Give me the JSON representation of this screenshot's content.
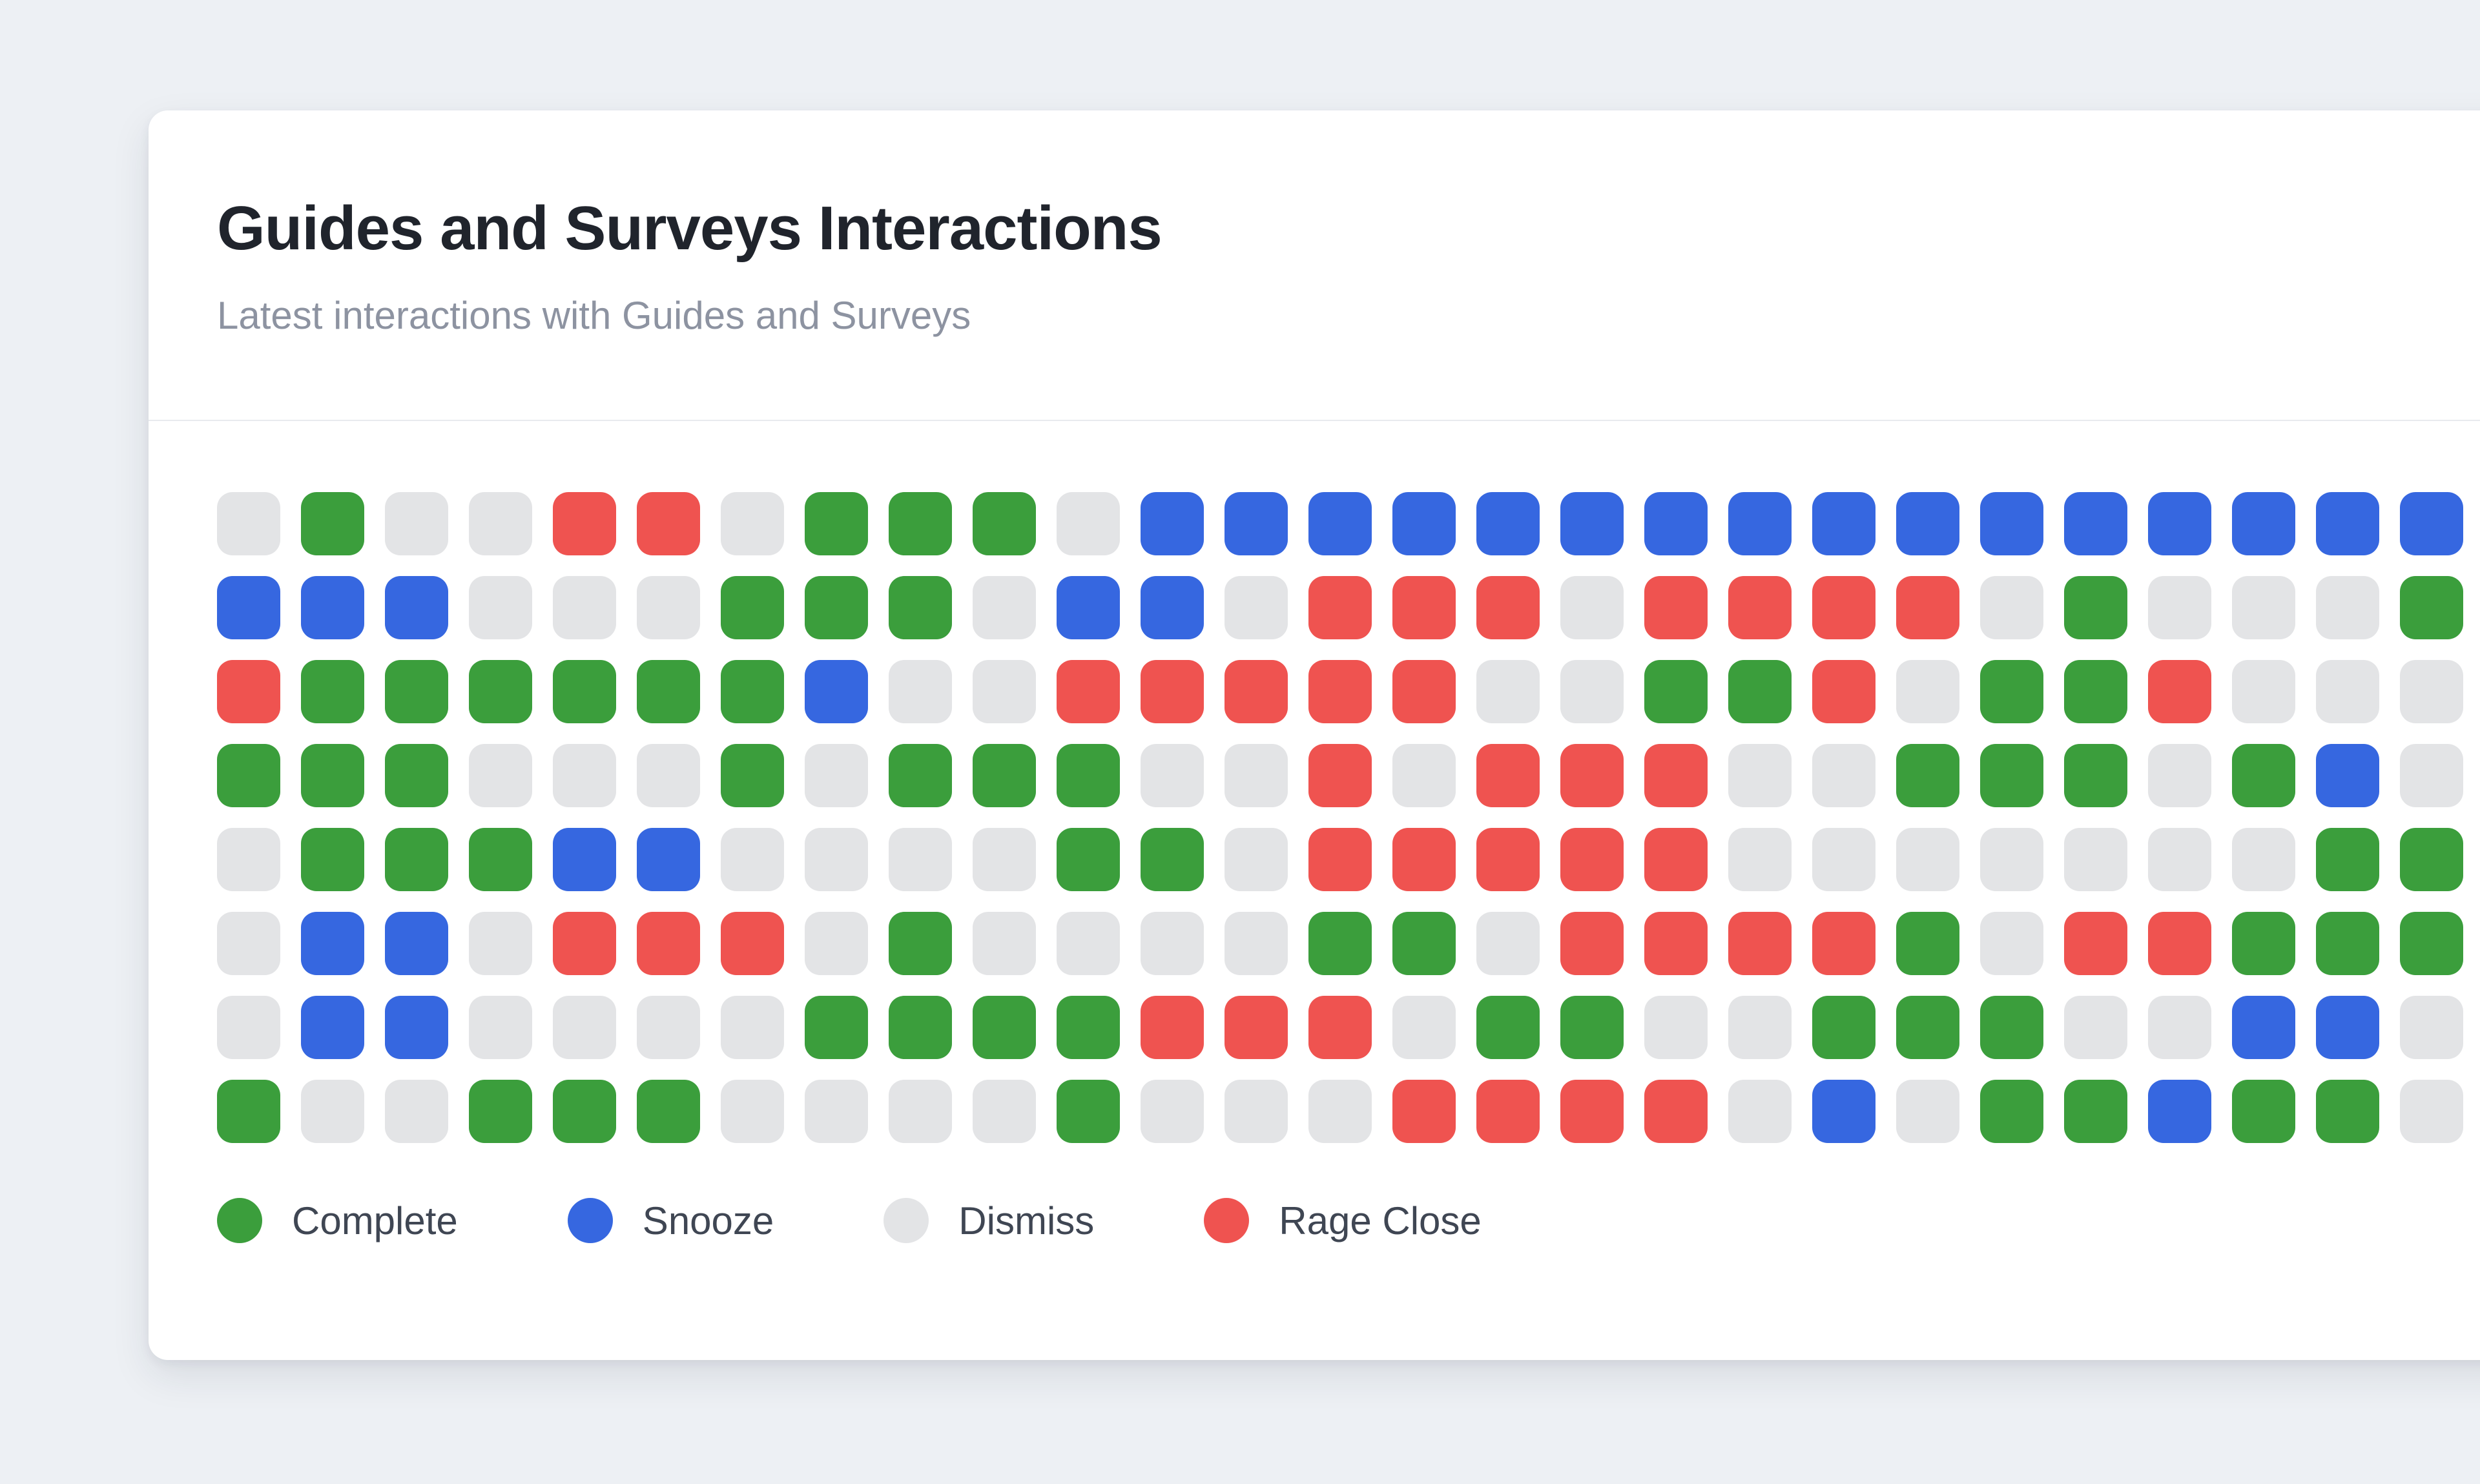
{
  "card": {
    "title": "Guides and Surveys Interactions",
    "subtitle": "Latest interactions with Guides and Surveys"
  },
  "legend": {
    "items": [
      {
        "id": "complete",
        "label": "Complete",
        "color": "#3b9e3c"
      },
      {
        "id": "snooze",
        "label": "Snooze",
        "color": "#3667e0"
      },
      {
        "id": "dismiss",
        "label": "Dismiss",
        "color": "#e3e4e6"
      },
      {
        "id": "rage_close",
        "label": "Rage Close",
        "color": "#ef5350"
      }
    ]
  },
  "chart_data": {
    "type": "heatmap",
    "title": "Guides and Surveys Interactions",
    "subtitle": "Latest interactions with Guides and Surveys",
    "rows": 8,
    "cols": 27,
    "legend_position": "bottom",
    "states": {
      "C": "Complete",
      "S": "Snooze",
      "D": "Dismiss",
      "R": "Rage Close"
    },
    "colors": {
      "C": "#3b9e3c",
      "S": "#3667e0",
      "D": "#e3e4e6",
      "R": "#ef5350"
    },
    "grid": [
      "DCDDRRDCCCDSSSSSSSSSSSSSSSS",
      "SSSDDDCCCDSSDRRRDRRRRDCDDDC",
      "RCCCCCCSDDRRRRRDDCCRDCCRDDD",
      "CCCDDDCDCCCDDRDRRRDDCCCDCSD",
      "DCCCSSDDDDCCDRRRRRDDDDDDDCC",
      "DSSDRRRDCDDDDCCDRRRRCDRRCCC",
      "DSSDDDDCCCCRRRDCCDDCCCDDSSD",
      "CDDCCCDDDDCDDDRRRRDSDCCSCCD"
    ]
  }
}
